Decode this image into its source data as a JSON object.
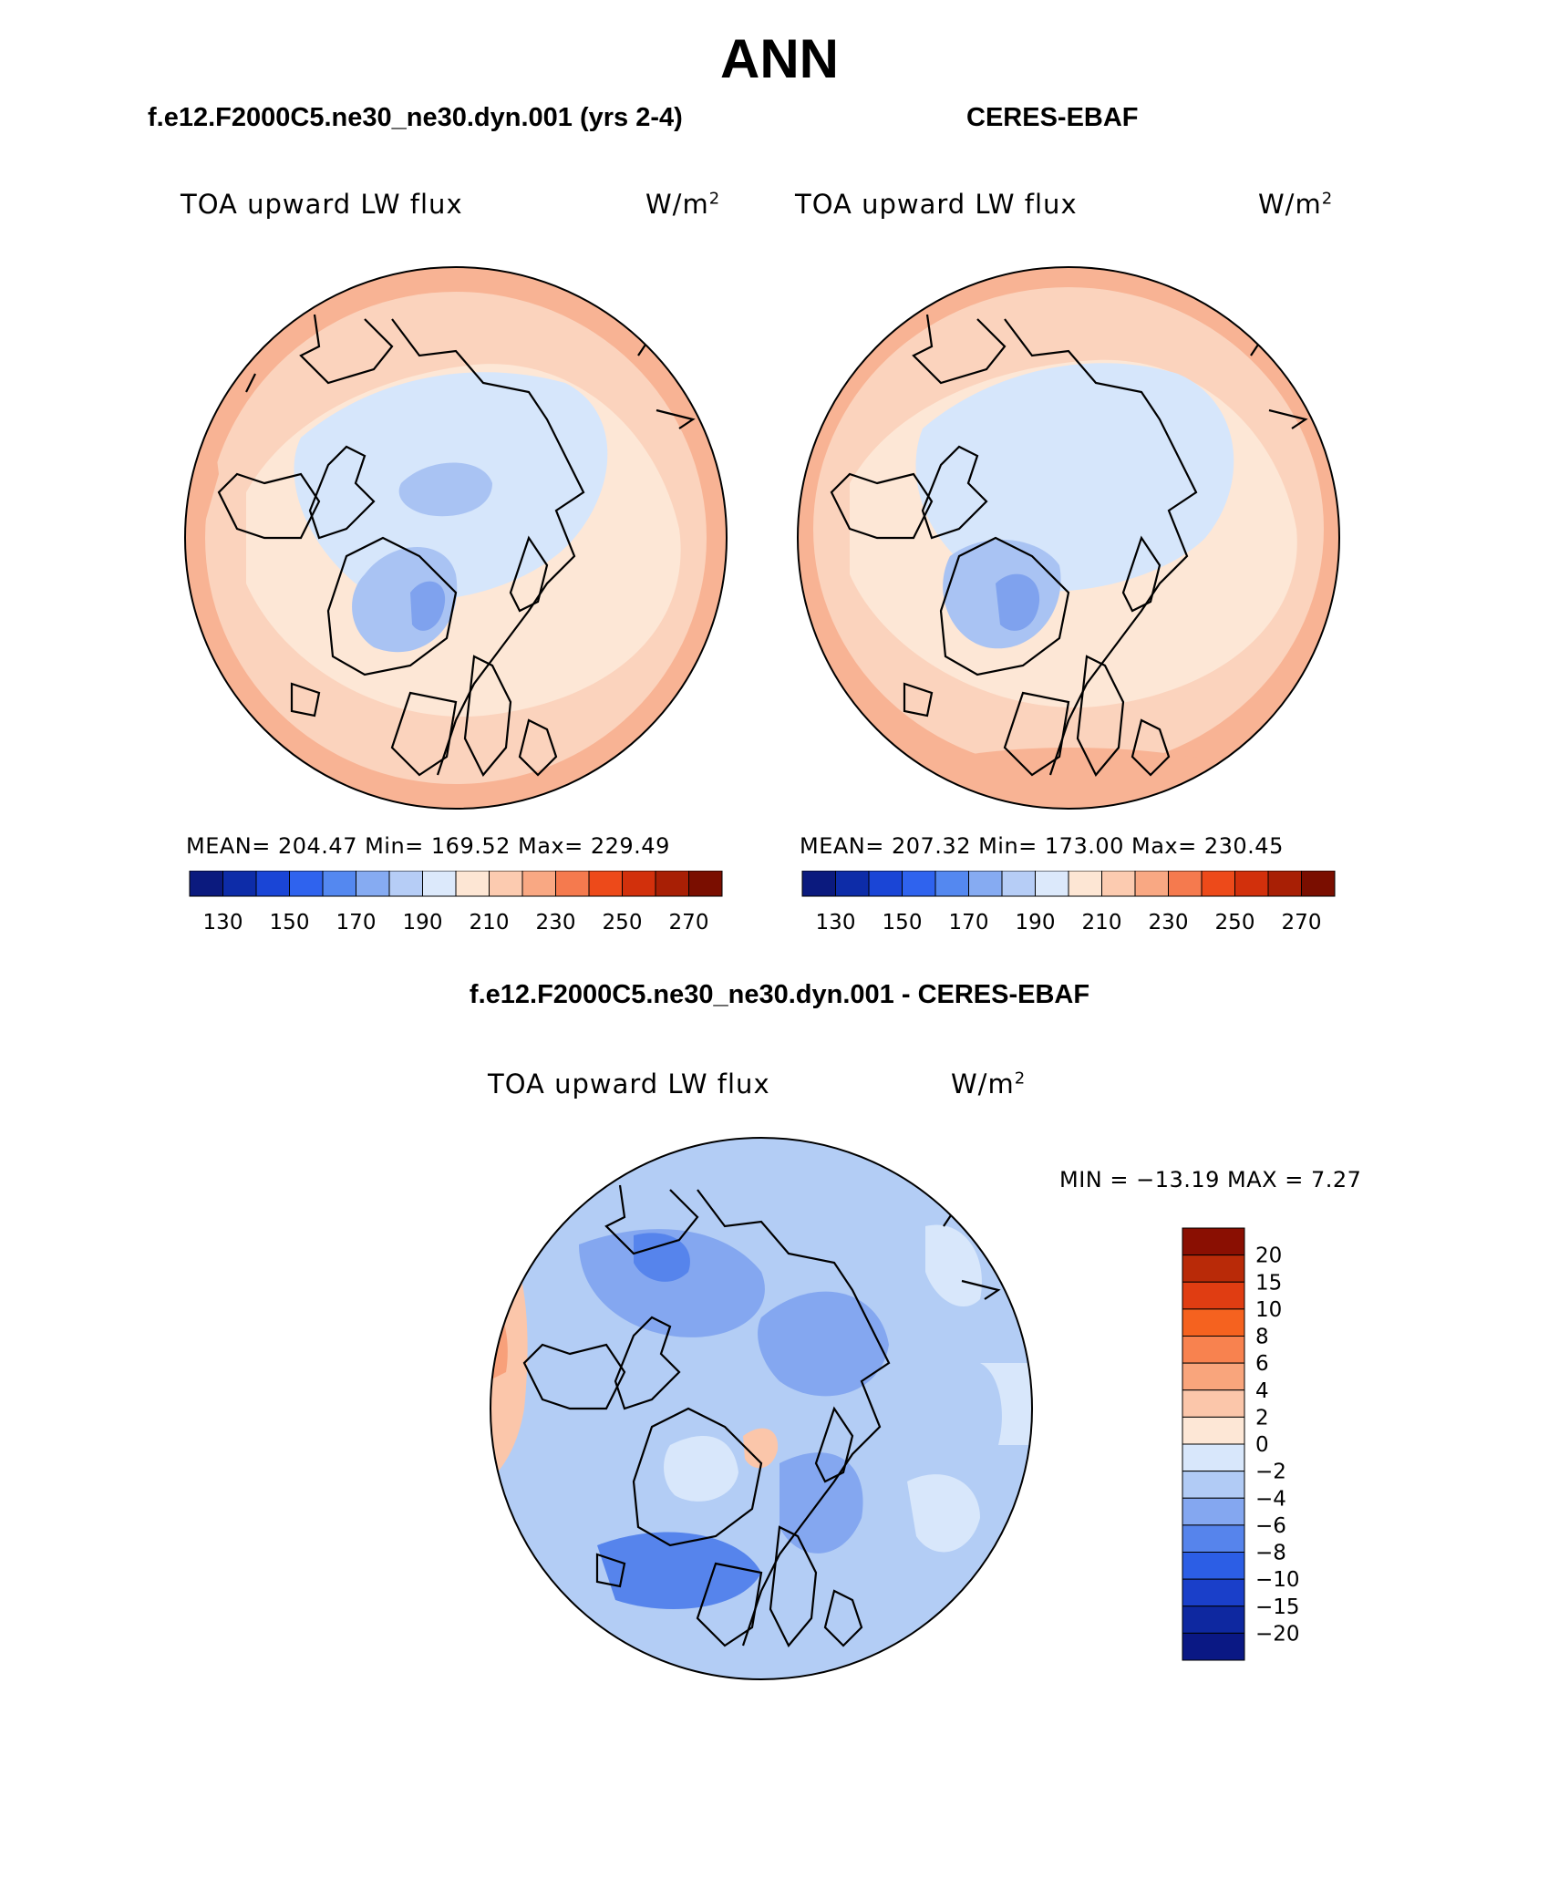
{
  "figure": {
    "title": "ANN",
    "left_subtitle": "f.e12.F2000C5.ne30_ne30.dyn.001 (yrs 2-4)",
    "right_subtitle": "CERES-EBAF",
    "diff_subtitle": "f.e12.F2000C5.ne30_ne30.dyn.001 - CERES-EBAF"
  },
  "panels": [
    {
      "id": "model",
      "variable": "TOA upward LW flux",
      "unit_base": "W/m",
      "unit_exp": "2",
      "stats_text": "MEAN= 204.47   Min= 169.52   Max= 229.49",
      "mean": 204.47,
      "min": 169.52,
      "max": 229.49
    },
    {
      "id": "obs",
      "variable": "TOA upward LW flux",
      "unit_base": "W/m",
      "unit_exp": "2",
      "stats_text": "MEAN= 207.32   Min= 173.00   Max= 230.45",
      "mean": 207.32,
      "min": 173.0,
      "max": 230.45
    },
    {
      "id": "diff",
      "variable": "TOA upward LW flux",
      "unit_base": "W/m",
      "unit_exp": "2",
      "stats_text": "MIN = −13.19 MAX =    7.27",
      "min": -13.19,
      "max": 7.27
    }
  ],
  "colorbar_abs": {
    "tick_labels": [
      "130",
      "150",
      "170",
      "190",
      "210",
      "230",
      "250",
      "270"
    ],
    "colors": [
      "#0b1a7e",
      "#0d2ca8",
      "#1a45d6",
      "#2f63ee",
      "#5488f0",
      "#86abf2",
      "#b6cdf6",
      "#dce9fb",
      "#fde6d4",
      "#fccbb0",
      "#f9a883",
      "#f57a4e",
      "#ed4a1a",
      "#d2300c",
      "#a81f05",
      "#7a0e00"
    ]
  },
  "colorbar_diff": {
    "tick_labels": [
      "20",
      "15",
      "10",
      "8",
      "6",
      "4",
      "2",
      "0",
      "−2",
      "−4",
      "−6",
      "−8",
      "−10",
      "−15",
      "−20"
    ],
    "colors": [
      "#8a0f02",
      "#b92a08",
      "#e03d12",
      "#f5621f",
      "#f8824f",
      "#f9a57c",
      "#fbc6aa",
      "#fde7d6",
      "#d8e7fb",
      "#b1cbf5",
      "#84a7f0",
      "#5684ec",
      "#2c5ee5",
      "#1a3fc9",
      "#0e28a0",
      "#0a1884"
    ]
  },
  "map_colors": {
    "coast": "#000000",
    "abs_base": "#fbd3bd",
    "abs_outer": "#f8b394",
    "abs_mid": "#fde7d6",
    "abs_inner": "#d6e6fb",
    "abs_core": "#a9c3f3",
    "abs_deep": "#7fa2ee",
    "diff_base": "#b3cdf5",
    "diff_mid": "#84a7f0",
    "diff_deep": "#5684ec",
    "diff_light": "#d8e7fb",
    "diff_warm": "#fbc6aa",
    "diff_warmer": "#f8a07a"
  }
}
